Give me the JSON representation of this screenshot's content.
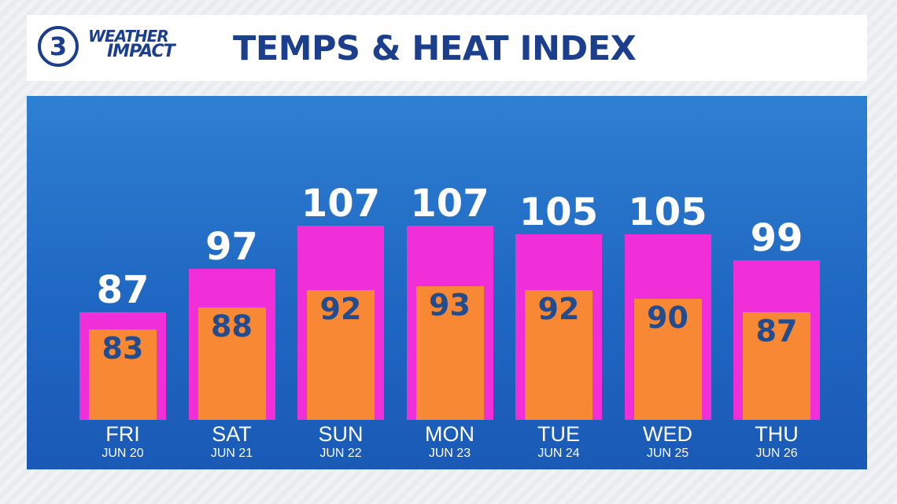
{
  "header": {
    "logo_number": "3",
    "logo_line1": "WEATHER",
    "logo_line2": "IMPACT",
    "title": "TEMPS & HEAT INDEX"
  },
  "colors": {
    "heat_index_bar": "#f12fd8",
    "temperature_bar": "#f98834",
    "panel_background": "#1f67c2",
    "brand_blue": "#1b3f8c",
    "temperature_label": "#234c8f"
  },
  "chart_data": {
    "type": "bar",
    "title": "TEMPS & HEAT INDEX",
    "categories": [
      "FRI",
      "SAT",
      "SUN",
      "MON",
      "TUE",
      "WED",
      "THU"
    ],
    "dates": [
      "JUN 20",
      "JUN 21",
      "JUN 22",
      "JUN 23",
      "JUN 24",
      "JUN 25",
      "JUN 26"
    ],
    "series": [
      {
        "values": [
          87,
          97,
          107,
          107,
          105,
          105,
          99
        ]
      },
      {
        "values": [
          83,
          88,
          92,
          93,
          92,
          90,
          87
        ]
      }
    ],
    "overlapping": true,
    "data_labels": true,
    "grid": false,
    "legend": "none"
  }
}
